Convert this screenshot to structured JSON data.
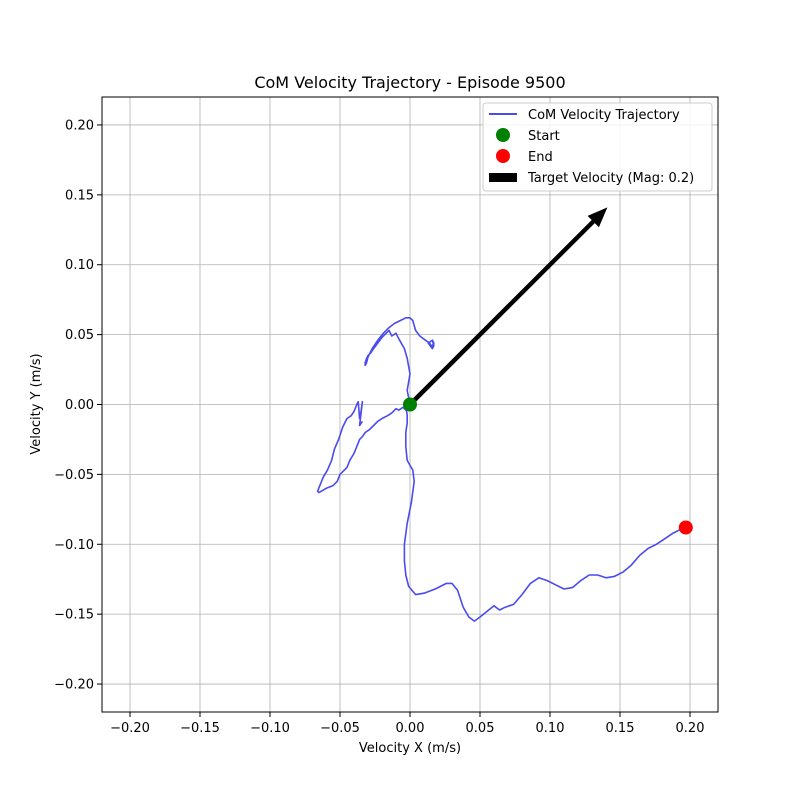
{
  "chart_data": {
    "type": "line",
    "title": "CoM Velocity Trajectory - Episode 9500",
    "xlabel": "Velocity X (m/s)",
    "ylabel": "Velocity Y (m/s)",
    "xlim": [
      -0.22,
      0.22
    ],
    "ylim": [
      -0.22,
      0.22
    ],
    "xticks": [
      -0.2,
      -0.15,
      -0.1,
      -0.05,
      0.0,
      0.05,
      0.1,
      0.15,
      0.2
    ],
    "yticks": [
      -0.2,
      -0.15,
      -0.1,
      -0.05,
      0.0,
      0.05,
      0.1,
      0.15,
      0.2
    ],
    "xtick_labels": [
      "−0.20",
      "−0.15",
      "−0.10",
      "−0.05",
      "0.00",
      "0.05",
      "0.10",
      "0.15",
      "0.20"
    ],
    "ytick_labels": [
      "−0.20",
      "−0.15",
      "−0.10",
      "−0.05",
      "0.00",
      "0.05",
      "0.10",
      "0.15",
      "0.20"
    ],
    "grid": true,
    "legend_position": "top-right",
    "series": [
      {
        "name": "CoM Velocity Trajectory",
        "kind": "line",
        "color": "#4b4bee",
        "points": [
          [
            0.0,
            0.0
          ],
          [
            -0.002,
            0.01
          ],
          [
            0.0,
            0.022
          ],
          [
            -0.002,
            0.033
          ],
          [
            -0.004,
            0.04
          ],
          [
            -0.008,
            0.047
          ],
          [
            -0.01,
            0.051
          ],
          [
            -0.013,
            0.049
          ],
          [
            -0.015,
            0.053
          ],
          [
            -0.018,
            0.05
          ],
          [
            -0.02,
            0.048
          ],
          [
            -0.023,
            0.044
          ],
          [
            -0.026,
            0.04
          ],
          [
            -0.028,
            0.037
          ],
          [
            -0.03,
            0.035
          ],
          [
            -0.031,
            0.033
          ],
          [
            -0.032,
            0.03
          ],
          [
            -0.032,
            0.028
          ],
          [
            -0.031,
            0.03
          ],
          [
            -0.03,
            0.034
          ],
          [
            -0.027,
            0.04
          ],
          [
            -0.023,
            0.046
          ],
          [
            -0.019,
            0.051
          ],
          [
            -0.015,
            0.055
          ],
          [
            -0.011,
            0.058
          ],
          [
            -0.007,
            0.06
          ],
          [
            -0.003,
            0.062
          ],
          [
            0.0,
            0.062
          ],
          [
            0.002,
            0.06
          ],
          [
            0.004,
            0.053
          ],
          [
            0.007,
            0.049
          ],
          [
            0.011,
            0.046
          ],
          [
            0.014,
            0.044
          ],
          [
            0.016,
            0.04
          ],
          [
            0.017,
            0.042
          ],
          [
            0.016,
            0.046
          ],
          [
            0.017,
            0.044
          ],
          [
            0.016,
            0.04
          ],
          [
            0.013,
            0.044
          ],
          [
            0.016,
            0.046
          ],
          [
            0.017,
            0.043
          ],
          [
            0.015,
            0.042
          ]
        ],
        "tail_points": [
          [
            0.0,
            0.0
          ],
          [
            -0.003,
            -0.004
          ],
          [
            -0.005,
            -0.002
          ],
          [
            -0.008,
            -0.004
          ],
          [
            -0.01,
            -0.003
          ],
          [
            -0.013,
            -0.006
          ],
          [
            -0.016,
            -0.008
          ],
          [
            -0.02,
            -0.01
          ],
          [
            -0.023,
            -0.012
          ],
          [
            -0.026,
            -0.015
          ],
          [
            -0.029,
            -0.018
          ],
          [
            -0.032,
            -0.02
          ],
          [
            -0.034,
            -0.023
          ],
          [
            -0.036,
            -0.025
          ],
          [
            -0.038,
            -0.03
          ],
          [
            -0.04,
            -0.035
          ],
          [
            -0.043,
            -0.04
          ],
          [
            -0.045,
            -0.045
          ],
          [
            -0.047,
            -0.047
          ],
          [
            -0.05,
            -0.05
          ],
          [
            -0.052,
            -0.055
          ],
          [
            -0.055,
            -0.058
          ],
          [
            -0.06,
            -0.06
          ],
          [
            -0.065,
            -0.063
          ],
          [
            -0.066,
            -0.062
          ],
          [
            -0.064,
            -0.057
          ],
          [
            -0.062,
            -0.052
          ],
          [
            -0.059,
            -0.047
          ],
          [
            -0.056,
            -0.04
          ],
          [
            -0.054,
            -0.032
          ],
          [
            -0.051,
            -0.025
          ],
          [
            -0.048,
            -0.016
          ],
          [
            -0.045,
            -0.01
          ],
          [
            -0.042,
            -0.008
          ],
          [
            -0.04,
            -0.005
          ],
          [
            -0.038,
            0.0
          ],
          [
            -0.037,
            0.002
          ],
          [
            -0.036,
            -0.01
          ],
          [
            -0.035,
            -0.005
          ],
          [
            -0.034,
            0.002
          ],
          [
            -0.036,
            -0.015
          ],
          [
            -0.034,
            -0.012
          ]
        ],
        "lower_points": [
          [
            -0.003,
            0.0
          ],
          [
            -0.002,
            -0.008
          ],
          [
            -0.002,
            -0.013
          ],
          [
            -0.003,
            -0.02
          ],
          [
            -0.003,
            -0.03
          ],
          [
            -0.002,
            -0.04
          ],
          [
            0.002,
            -0.047
          ],
          [
            0.003,
            -0.055
          ],
          [
            0.001,
            -0.07
          ],
          [
            -0.002,
            -0.085
          ],
          [
            -0.004,
            -0.1
          ],
          [
            -0.004,
            -0.112
          ],
          [
            -0.003,
            -0.122
          ],
          [
            -0.001,
            -0.13
          ],
          [
            0.004,
            -0.136
          ],
          [
            0.01,
            -0.135
          ],
          [
            0.018,
            -0.132
          ],
          [
            0.026,
            -0.128
          ],
          [
            0.03,
            -0.128
          ],
          [
            0.034,
            -0.133
          ],
          [
            0.038,
            -0.145
          ],
          [
            0.042,
            -0.152
          ],
          [
            0.046,
            -0.155
          ],
          [
            0.05,
            -0.152
          ],
          [
            0.055,
            -0.148
          ],
          [
            0.06,
            -0.144
          ],
          [
            0.064,
            -0.147
          ],
          [
            0.068,
            -0.145
          ],
          [
            0.074,
            -0.143
          ],
          [
            0.08,
            -0.136
          ],
          [
            0.086,
            -0.128
          ],
          [
            0.092,
            -0.124
          ],
          [
            0.098,
            -0.126
          ],
          [
            0.104,
            -0.129
          ],
          [
            0.11,
            -0.132
          ],
          [
            0.116,
            -0.131
          ],
          [
            0.122,
            -0.126
          ],
          [
            0.128,
            -0.122
          ],
          [
            0.134,
            -0.122
          ],
          [
            0.14,
            -0.124
          ],
          [
            0.146,
            -0.123
          ],
          [
            0.152,
            -0.12
          ],
          [
            0.158,
            -0.115
          ],
          [
            0.164,
            -0.108
          ],
          [
            0.17,
            -0.103
          ],
          [
            0.176,
            -0.1
          ],
          [
            0.182,
            -0.096
          ],
          [
            0.188,
            -0.092
          ],
          [
            0.192,
            -0.09
          ],
          [
            0.197,
            -0.088
          ]
        ]
      },
      {
        "name": "Start",
        "kind": "marker",
        "color": "#008000",
        "point": [
          0.0,
          0.0
        ]
      },
      {
        "name": "End",
        "kind": "marker",
        "color": "#ff0000",
        "point": [
          0.197,
          -0.088
        ]
      },
      {
        "name": "Target Velocity (Mag: 0.2)",
        "kind": "arrow",
        "color": "#000000",
        "from": [
          0.0,
          0.0
        ],
        "to": [
          0.141,
          0.141
        ]
      }
    ]
  }
}
